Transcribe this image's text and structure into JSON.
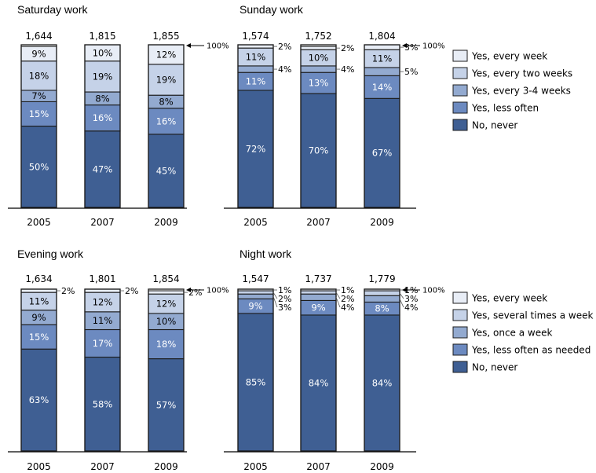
{
  "colors": [
    "#3f5f93",
    "#6c8ac0",
    "#93aad0",
    "#c5d2e8",
    "#e8edf6"
  ],
  "hundred_label": "100%",
  "legends": [
    [
      "No, never",
      "Yes, less often",
      "Yes, every 3-4 weeks",
      "Yes, every two weeks",
      "Yes, every week"
    ],
    [
      "No, never",
      "Yes, less often as needed",
      "Yes, once a week",
      "Yes, several times a week",
      "Yes, every week"
    ]
  ],
  "chart_data": [
    {
      "type": "bar",
      "title": "Saturday work",
      "categories": [
        "2005",
        "2007",
        "2009"
      ],
      "totals": [
        "1,644",
        "1,815",
        "1,855"
      ],
      "ylim": [
        0,
        100
      ],
      "series": [
        {
          "name": "No, never",
          "values": [
            50,
            47,
            45
          ]
        },
        {
          "name": "Yes, less often",
          "values": [
            15,
            16,
            16
          ]
        },
        {
          "name": "Yes, every 3-4 weeks",
          "values": [
            7,
            8,
            8
          ]
        },
        {
          "name": "Yes, every two weeks",
          "values": [
            18,
            19,
            19
          ]
        },
        {
          "name": "Yes, every week",
          "values": [
            9,
            10,
            12
          ]
        }
      ]
    },
    {
      "type": "bar",
      "title": "Sunday work",
      "categories": [
        "2005",
        "2007",
        "2009"
      ],
      "totals": [
        "1,574",
        "1,752",
        "1,804"
      ],
      "ylim": [
        0,
        100
      ],
      "series": [
        {
          "name": "No, never",
          "values": [
            72,
            70,
            67
          ]
        },
        {
          "name": "Yes, less often",
          "values": [
            11,
            13,
            14
          ]
        },
        {
          "name": "Yes, every 3-4 weeks",
          "values": [
            4,
            4,
            5
          ]
        },
        {
          "name": "Yes, every two weeks",
          "values": [
            11,
            10,
            11
          ]
        },
        {
          "name": "Yes, every week",
          "values": [
            2,
            2,
            3
          ]
        }
      ]
    },
    {
      "type": "bar",
      "title": "Evening work",
      "categories": [
        "2005",
        "2007",
        "2009"
      ],
      "totals": [
        "1,634",
        "1,801",
        "1,854"
      ],
      "ylim": [
        0,
        100
      ],
      "series": [
        {
          "name": "No, never",
          "values": [
            63,
            58,
            57
          ]
        },
        {
          "name": "Yes, less often as needed",
          "values": [
            15,
            17,
            18
          ]
        },
        {
          "name": "Yes, once a week",
          "values": [
            9,
            11,
            10
          ]
        },
        {
          "name": "Yes, several times a week",
          "values": [
            11,
            12,
            12
          ]
        },
        {
          "name": "Yes, every week",
          "values": [
            2,
            2,
            2
          ]
        }
      ]
    },
    {
      "type": "bar",
      "title": "Night work",
      "categories": [
        "2005",
        "2007",
        "2009"
      ],
      "totals": [
        "1,547",
        "1,737",
        "1,779"
      ],
      "ylim": [
        0,
        100
      ],
      "series": [
        {
          "name": "No, never",
          "values": [
            85,
            84,
            84
          ]
        },
        {
          "name": "Yes, less often as needed",
          "values": [
            9,
            9,
            8
          ]
        },
        {
          "name": "Yes, once a week",
          "values": [
            3,
            4,
            4
          ]
        },
        {
          "name": "Yes, several times a week",
          "values": [
            2,
            2,
            3
          ]
        },
        {
          "name": "Yes, every week",
          "values": [
            1,
            1,
            1
          ]
        }
      ]
    }
  ]
}
